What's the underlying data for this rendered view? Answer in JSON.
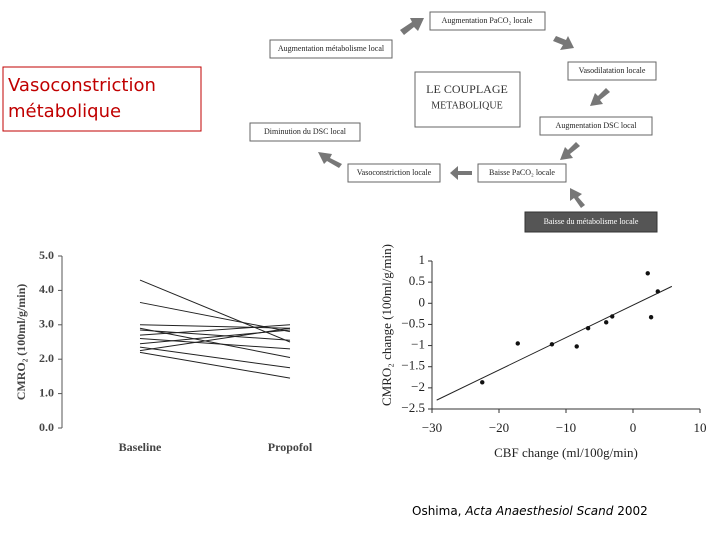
{
  "label": {
    "lines": [
      "Vasoconstriction",
      "métabolique"
    ]
  },
  "diagram": {
    "title": {
      "lines": [
        "LE COUPLAGE",
        "METABOLIQUE"
      ]
    },
    "nodes": [
      {
        "label": "Augmentation PaCO₂ locale"
      },
      {
        "label": "Vasodilatation locale"
      },
      {
        "label": "Augmentation DSC local"
      },
      {
        "label": "Baisse du métabolisme locale"
      },
      {
        "label": "Baisse PaCO₂ locale"
      },
      {
        "label": "Vasoconstriction locale"
      },
      {
        "label": "Diminution du DSC local"
      },
      {
        "label": "Augmentation métabolisme local"
      }
    ]
  },
  "chart_data": [
    {
      "type": "line",
      "ylabel": "CMRO₂ (100ml/g/min)",
      "categories": [
        "Baseline",
        "Propofol"
      ],
      "color": "#222222",
      "ylim": [
        0,
        5
      ],
      "yticks": [
        {
          "value": 0,
          "label": "0.0"
        },
        {
          "value": 1,
          "label": "1.0"
        },
        {
          "value": 2,
          "label": "2.0"
        },
        {
          "value": 3,
          "label": "3.0"
        },
        {
          "value": 4,
          "label": "4.0"
        },
        {
          "value": 5,
          "label": "5.0"
        }
      ],
      "series": [
        {
          "values": [
            4.3,
            2.5
          ]
        },
        {
          "values": [
            3.65,
            2.8
          ]
        },
        {
          "values": [
            3.0,
            2.9
          ]
        },
        {
          "values": [
            2.9,
            2.05
          ]
        },
        {
          "values": [
            2.85,
            2.55
          ]
        },
        {
          "values": [
            2.7,
            3.0
          ]
        },
        {
          "values": [
            2.6,
            2.3
          ]
        },
        {
          "values": [
            2.45,
            2.85
          ]
        },
        {
          "values": [
            2.35,
            1.75
          ]
        },
        {
          "values": [
            2.25,
            2.9
          ]
        },
        {
          "values": [
            2.2,
            1.45
          ]
        }
      ]
    },
    {
      "type": "scatter",
      "xlabel": "CBF change (ml/100g/min)",
      "ylabel": "CMRO₂ change (100ml/g/min)",
      "color": "#111111",
      "xlim": [
        -30,
        10
      ],
      "ylim": [
        -2.5,
        1
      ],
      "xticks": [
        {
          "value": -30,
          "label": "−30"
        },
        {
          "value": -20,
          "label": "−20"
        },
        {
          "value": -10,
          "label": "−10"
        },
        0,
        10
      ],
      "yticks": [
        1,
        0.5,
        0,
        {
          "value": -0.5,
          "label": "−0.5"
        },
        {
          "value": -1,
          "label": "−1"
        },
        {
          "value": -1.5,
          "label": "−1.5"
        },
        {
          "value": -2,
          "label": "−2"
        },
        {
          "value": -2.5,
          "label": "−2.5"
        }
      ],
      "x": [
        -22.5,
        -17.2,
        -12.1,
        -8.4,
        -6.7,
        -4.0,
        -3.1,
        2.2,
        2.7,
        3.7
      ],
      "values": [
        -1.87,
        -0.95,
        -0.97,
        -1.02,
        -0.59,
        -0.45,
        -0.31,
        0.71,
        -0.33,
        0.28
      ],
      "fit": {
        "x": [
          -29.3,
          5.8
        ],
        "y": [
          -2.29,
          0.4
        ]
      }
    }
  ],
  "citation": {
    "author": "Oshima,",
    "journal": "Acta Anaesthesiol Scand",
    "year": "2002"
  }
}
